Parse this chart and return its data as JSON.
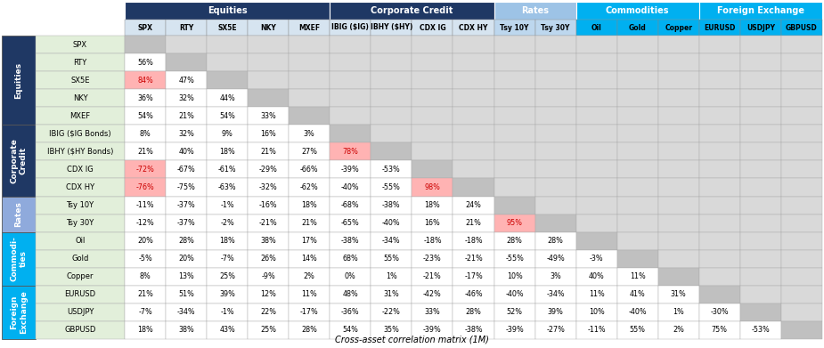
{
  "row_labels": [
    "SPX",
    "RTY",
    "SX5E",
    "NKY",
    "MXEF",
    "IBIG ($IG Bonds)",
    "IBHY ($HY Bonds)",
    "CDX IG",
    "CDX HY",
    "Tsy 10Y",
    "Tsy 30Y",
    "Oil",
    "Gold",
    "Copper",
    "EURUSD",
    "USDJPY",
    "GBPUSD"
  ],
  "col_labels": [
    "SPX",
    "RTY",
    "SX5E",
    "NKY",
    "MXEF",
    "IBIG ($IG)",
    "IBHY ($HY)",
    "CDX IG",
    "CDX HY",
    "Tsy 10Y",
    "Tsy 30Y",
    "Oil",
    "Gold",
    "Copper",
    "EURUSD",
    "USDJPY",
    "GBPUSD"
  ],
  "group_headers": [
    "Equities",
    "Corporate Credit",
    "Rates",
    "Commodities",
    "Foreign Exchange"
  ],
  "group_col_spans": [
    5,
    4,
    2,
    3,
    3
  ],
  "group_col_starts": [
    0,
    5,
    9,
    11,
    14
  ],
  "group_top_colors": [
    "#1f3864",
    "#1f3864",
    "#9dc3e6",
    "#00b0f0",
    "#00b0f0"
  ],
  "row_group_labels": [
    "Equities",
    "Corporate\nCredit",
    "Rates",
    "Commodi-\nties",
    "Foreign\nExchange"
  ],
  "row_group_spans": [
    5,
    4,
    2,
    3,
    3
  ],
  "row_group_colors": [
    "#1f3864",
    "#1f3864",
    "#8faadc",
    "#00b0f0",
    "#00b0f0"
  ],
  "row_group_text_colors": [
    "white",
    "white",
    "white",
    "white",
    "white"
  ],
  "row_label_bg": "#e2efda",
  "matrix": [
    [
      null,
      null,
      null,
      null,
      null,
      null,
      null,
      null,
      null,
      null,
      null,
      null,
      null,
      null,
      null,
      null,
      null
    ],
    [
      56,
      null,
      null,
      null,
      null,
      null,
      null,
      null,
      null,
      null,
      null,
      null,
      null,
      null,
      null,
      null,
      null
    ],
    [
      84,
      47,
      null,
      null,
      null,
      null,
      null,
      null,
      null,
      null,
      null,
      null,
      null,
      null,
      null,
      null,
      null
    ],
    [
      36,
      32,
      44,
      null,
      null,
      null,
      null,
      null,
      null,
      null,
      null,
      null,
      null,
      null,
      null,
      null,
      null
    ],
    [
      54,
      21,
      54,
      33,
      null,
      null,
      null,
      null,
      null,
      null,
      null,
      null,
      null,
      null,
      null,
      null,
      null
    ],
    [
      8,
      32,
      9,
      16,
      3,
      null,
      null,
      null,
      null,
      null,
      null,
      null,
      null,
      null,
      null,
      null,
      null
    ],
    [
      21,
      40,
      18,
      21,
      27,
      78,
      null,
      null,
      null,
      null,
      null,
      null,
      null,
      null,
      null,
      null,
      null
    ],
    [
      -72,
      -67,
      -61,
      -29,
      -66,
      -39,
      -53,
      null,
      null,
      null,
      null,
      null,
      null,
      null,
      null,
      null,
      null
    ],
    [
      -76,
      -75,
      -63,
      -32,
      -62,
      -40,
      -55,
      98,
      null,
      null,
      null,
      null,
      null,
      null,
      null,
      null,
      null
    ],
    [
      -11,
      -37,
      -1,
      -16,
      18,
      -68,
      -38,
      18,
      24,
      null,
      null,
      null,
      null,
      null,
      null,
      null,
      null
    ],
    [
      -12,
      -37,
      -2,
      -21,
      21,
      -65,
      -40,
      16,
      21,
      95,
      null,
      null,
      null,
      null,
      null,
      null,
      null
    ],
    [
      20,
      28,
      18,
      38,
      17,
      -38,
      -34,
      -18,
      -18,
      28,
      28,
      null,
      null,
      null,
      null,
      null,
      null
    ],
    [
      -5,
      20,
      -7,
      26,
      14,
      68,
      55,
      -23,
      -21,
      -55,
      -49,
      -3,
      null,
      null,
      null,
      null,
      null
    ],
    [
      8,
      13,
      25,
      -9,
      2,
      0,
      1,
      -21,
      -17,
      10,
      3,
      40,
      11,
      null,
      null,
      null,
      null
    ],
    [
      21,
      51,
      39,
      12,
      11,
      48,
      31,
      -42,
      -46,
      -40,
      -34,
      11,
      41,
      31,
      null,
      null,
      null
    ],
    [
      -7,
      -34,
      -1,
      22,
      -17,
      -36,
      -22,
      33,
      28,
      52,
      39,
      10,
      -40,
      1,
      -30,
      null,
      null
    ],
    [
      18,
      38,
      43,
      25,
      28,
      54,
      35,
      -39,
      -38,
      -39,
      -27,
      -11,
      55,
      2,
      75,
      -53,
      null
    ]
  ],
  "highlight_cells": [
    {
      "row": 2,
      "col": 0,
      "color": "#ffb3b3"
    },
    {
      "row": 7,
      "col": 0,
      "color": "#ffb3b3"
    },
    {
      "row": 8,
      "col": 0,
      "color": "#ffb3b3"
    },
    {
      "row": 6,
      "col": 5,
      "color": "#ffb3b3"
    },
    {
      "row": 8,
      "col": 7,
      "color": "#ffb3b3"
    },
    {
      "row": 10,
      "col": 9,
      "color": "#ffb3b3"
    }
  ],
  "col_header_bg_equities": "#dce6f1",
  "col_header_bg_corp": "#dce6f1",
  "col_header_bg_rates": "#bdd7ee",
  "col_header_bg_comm": "#00b0f0",
  "col_header_bg_fx": "#00b0f0",
  "diagonal_color": "#c0c0c0",
  "above_diag_color": "#d9d9d9",
  "white_cell": "#ffffff",
  "title": "Cross-asset correlation matrix (1M)"
}
